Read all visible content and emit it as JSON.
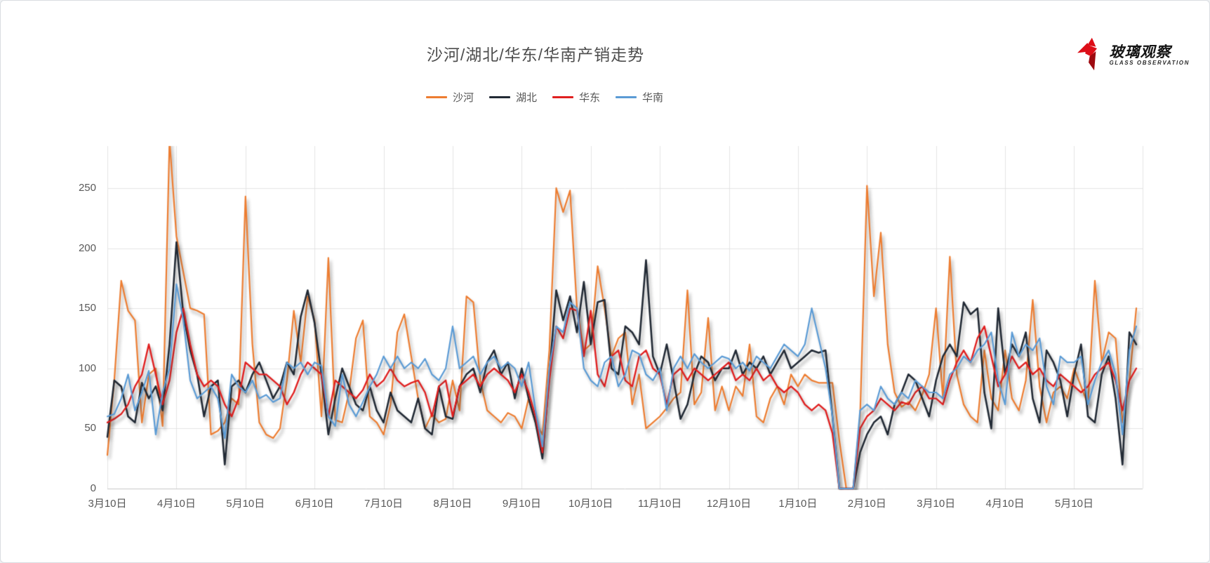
{
  "title": "沙河/湖北/华东/华南产销走势",
  "logo": {
    "name_cn": "玻璃观察",
    "name_en": "GLASS OBSERVATION",
    "mark_color": "#DD0E18",
    "mark_color_dark": "#9E0A10"
  },
  "chart_data": {
    "type": "line",
    "title": "沙河/湖北/华东/华南产销走势",
    "legend_position": "top",
    "grid": true,
    "ylim": [
      0,
      285
    ],
    "y_axis": {
      "ticks": [
        0,
        50,
        100,
        150,
        200,
        250
      ]
    },
    "x_axis": {
      "tick_labels": [
        "3月10日",
        "4月10日",
        "5月10日",
        "6月10日",
        "7月10日",
        "8月10日",
        "9月10日",
        "10月10日",
        "11月10日",
        "12月10日",
        "1月10日",
        "2月10日",
        "3月10日",
        "4月10日",
        "5月10日"
      ],
      "tick_indices": [
        0,
        10,
        20,
        30,
        40,
        50,
        60,
        70,
        80,
        90,
        100,
        110,
        120,
        130,
        140
      ]
    },
    "points": 150,
    "series": [
      {
        "name": "沙河",
        "color": "#ED7D31",
        "values": [
          28,
          90,
          173,
          148,
          140,
          55,
          95,
          100,
          52,
          290,
          210,
          180,
          150,
          148,
          145,
          45,
          48,
          55,
          75,
          70,
          243,
          120,
          55,
          45,
          42,
          50,
          90,
          148,
          105,
          160,
          140,
          60,
          192,
          57,
          55,
          80,
          125,
          140,
          60,
          55,
          45,
          70,
          130,
          145,
          110,
          75,
          50,
          62,
          55,
          58,
          90,
          65,
          160,
          155,
          90,
          65,
          60,
          55,
          63,
          60,
          50,
          75,
          55,
          45,
          115,
          250,
          230,
          248,
          150,
          115,
          120,
          185,
          150,
          110,
          125,
          130,
          70,
          95,
          50,
          55,
          60,
          67,
          75,
          80,
          165,
          70,
          80,
          142,
          65,
          85,
          65,
          85,
          77,
          120,
          60,
          55,
          75,
          85,
          70,
          95,
          85,
          95,
          90,
          88,
          88,
          88,
          40,
          0,
          0,
          60,
          252,
          160,
          213,
          120,
          80,
          68,
          72,
          65,
          78,
          95,
          150,
          75,
          193,
          95,
          70,
          60,
          55,
          115,
          75,
          65,
          115,
          75,
          65,
          90,
          157,
          85,
          55,
          80,
          85,
          75,
          100,
          85,
          70,
          173,
          105,
          130,
          125,
          55,
          90,
          150
        ]
      },
      {
        "name": "湖北",
        "color": "#222A35",
        "values": [
          43,
          90,
          85,
          60,
          55,
          88,
          75,
          85,
          65,
          120,
          205,
          145,
          115,
          95,
          60,
          85,
          90,
          20,
          85,
          90,
          80,
          95,
          105,
          90,
          75,
          85,
          105,
          95,
          143,
          165,
          138,
          95,
          45,
          75,
          100,
          85,
          70,
          65,
          85,
          65,
          55,
          80,
          65,
          60,
          55,
          75,
          50,
          45,
          85,
          60,
          58,
          85,
          95,
          100,
          80,
          105,
          115,
          95,
          105,
          75,
          100,
          75,
          55,
          25,
          95,
          165,
          140,
          160,
          130,
          172,
          120,
          155,
          157,
          100,
          95,
          135,
          130,
          120,
          190,
          110,
          95,
          120,
          90,
          58,
          70,
          95,
          110,
          105,
          90,
          100,
          100,
          115,
          95,
          105,
          100,
          110,
          95,
          105,
          115,
          100,
          105,
          110,
          115,
          113,
          115,
          60,
          0,
          0,
          0,
          30,
          45,
          55,
          60,
          45,
          70,
          80,
          95,
          90,
          75,
          60,
          90,
          110,
          120,
          110,
          155,
          145,
          150,
          80,
          50,
          150,
          95,
          120,
          110,
          130,
          75,
          55,
          115,
          105,
          90,
          60,
          95,
          120,
          60,
          55,
          95,
          110,
          75,
          20,
          130,
          120
        ]
      },
      {
        "name": "华东",
        "color": "#E02020",
        "values": [
          55,
          58,
          62,
          70,
          85,
          95,
          120,
          95,
          70,
          90,
          130,
          150,
          120,
          95,
          85,
          90,
          85,
          70,
          60,
          75,
          105,
          100,
          95,
          95,
          90,
          85,
          70,
          80,
          95,
          105,
          100,
          95,
          60,
          90,
          85,
          80,
          75,
          82,
          95,
          85,
          90,
          100,
          90,
          85,
          88,
          90,
          80,
          60,
          85,
          90,
          60,
          85,
          90,
          95,
          85,
          95,
          100,
          95,
          90,
          80,
          95,
          80,
          60,
          30,
          90,
          135,
          125,
          150,
          148,
          110,
          148,
          95,
          85,
          110,
          115,
          90,
          85,
          110,
          115,
          100,
          95,
          70,
          95,
          100,
          90,
          100,
          95,
          90,
          95,
          100,
          105,
          90,
          95,
          90,
          100,
          90,
          95,
          85,
          80,
          85,
          80,
          70,
          65,
          70,
          65,
          46,
          0,
          0,
          0,
          50,
          60,
          65,
          75,
          70,
          65,
          72,
          70,
          80,
          85,
          75,
          75,
          70,
          90,
          105,
          115,
          105,
          125,
          135,
          110,
          85,
          95,
          110,
          100,
          105,
          95,
          100,
          90,
          85,
          95,
          90,
          85,
          80,
          85,
          95,
          100,
          105,
          90,
          65,
          90,
          100
        ]
      },
      {
        "name": "华南",
        "color": "#5B9BD5",
        "values": [
          60,
          62,
          75,
          95,
          65,
          80,
          98,
          45,
          80,
          100,
          170,
          140,
          90,
          75,
          80,
          85,
          75,
          42,
          95,
          85,
          80,
          90,
          75,
          78,
          72,
          75,
          105,
          100,
          105,
          95,
          105,
          102,
          60,
          52,
          95,
          70,
          60,
          72,
          85,
          95,
          110,
          100,
          110,
          100,
          105,
          100,
          108,
          95,
          90,
          100,
          135,
          100,
          105,
          110,
          95,
          105,
          110,
          100,
          105,
          100,
          85,
          105,
          65,
          35,
          100,
          135,
          130,
          155,
          150,
          100,
          90,
          85,
          105,
          110,
          85,
          95,
          115,
          112,
          95,
          90,
          100,
          65,
          100,
          110,
          100,
          112,
          105,
          100,
          105,
          110,
          108,
          100,
          105,
          98,
          110,
          105,
          100,
          110,
          120,
          115,
          110,
          120,
          150,
          125,
          100,
          60,
          0,
          0,
          0,
          65,
          70,
          65,
          85,
          75,
          70,
          80,
          75,
          90,
          85,
          80,
          80,
          75,
          95,
          100,
          110,
          105,
          115,
          120,
          130,
          90,
          70,
          130,
          110,
          120,
          115,
          125,
          85,
          70,
          110,
          105,
          105,
          110,
          70,
          90,
          105,
          115,
          95,
          45,
          115,
          135
        ]
      }
    ]
  }
}
